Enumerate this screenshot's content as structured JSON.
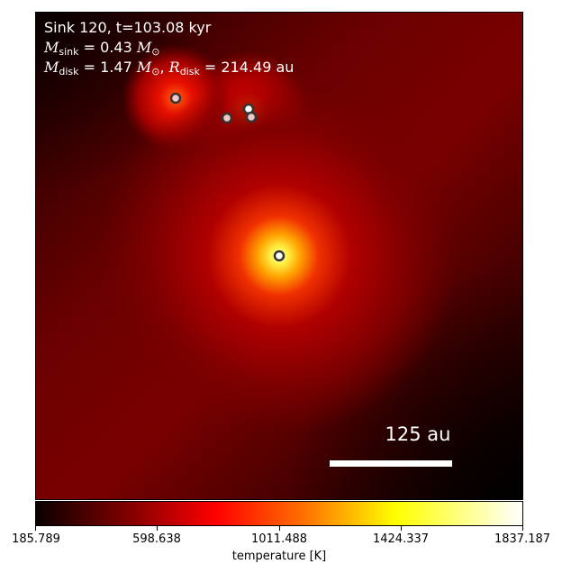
{
  "annotation": {
    "line1": "Sink 120, t=103.08 kyr",
    "m_sink_symbol": "M",
    "m_sink_sub": "sink",
    "m_sink_value": "= 0.43",
    "m_unit_symbol": "M",
    "m_unit_sub": "⊙",
    "m_disk_symbol": "M",
    "m_disk_sub": "disk",
    "m_disk_value": "= 1.47",
    "m_disk_unit_symbol": "M",
    "m_disk_unit_sub": "⊙",
    "separator": ",",
    "r_disk_symbol": "R",
    "r_disk_sub": "disk",
    "r_disk_value": "= 214.49 au"
  },
  "scalebar": {
    "label": "125 au"
  },
  "colorbar": {
    "ticks": [
      "185.789",
      "598.638",
      "1011.488",
      "1424.337",
      "1837.187"
    ],
    "label": "temperature [K]",
    "colormap": "hot"
  },
  "sinks": {
    "count": 5,
    "marker_face": "#f0c8c8",
    "marker_edge": "#333333"
  }
}
